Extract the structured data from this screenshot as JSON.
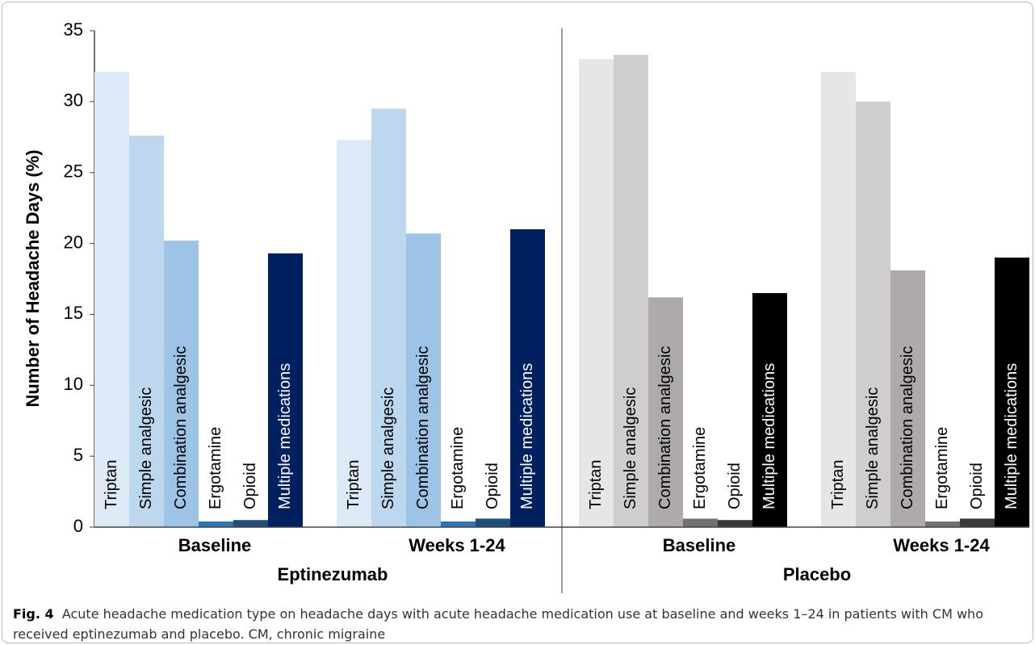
{
  "chart_data": {
    "type": "bar",
    "ylabel": "Number of Headache Days (%)",
    "ylim": [
      0,
      35
    ],
    "yticks": [
      0,
      5,
      10,
      15,
      20,
      25,
      30,
      35
    ],
    "categories": [
      "Triptan",
      "Simple analgesic",
      "Combination analgesic",
      "Ergotamine",
      "Opioid",
      "Multiple medications"
    ],
    "panels": [
      {
        "name": "Eptinezumab",
        "colors": [
          "#dde9f6",
          "#bdd7ee",
          "#9dc3e6",
          "#2e75b6",
          "#1f4e79",
          "#002060"
        ],
        "groups": [
          {
            "name": "Baseline",
            "values": [
              32.1,
              27.6,
              20.2,
              0.4,
              0.5,
              19.3
            ]
          },
          {
            "name": "Weeks 1-24",
            "values": [
              27.3,
              29.5,
              20.7,
              0.4,
              0.6,
              21.0
            ]
          }
        ]
      },
      {
        "name": "Placebo",
        "colors": [
          "#e7e6e6",
          "#cfcdcd",
          "#aeaaaa",
          "#767171",
          "#3b3838",
          "#000000"
        ],
        "groups": [
          {
            "name": "Baseline",
            "values": [
              33.0,
              33.3,
              16.2,
              0.6,
              0.5,
              16.5
            ]
          },
          {
            "name": "Weeks 1-24",
            "values": [
              32.1,
              30.0,
              18.1,
              0.4,
              0.6,
              19.0
            ]
          }
        ]
      }
    ]
  },
  "caption": {
    "label": "Fig. 4",
    "text": "Acute headache medication type on headache days with acute headache medication use at baseline and weeks 1–24 in patients with CM who received eptinezumab and placebo. CM, chronic migraine"
  }
}
